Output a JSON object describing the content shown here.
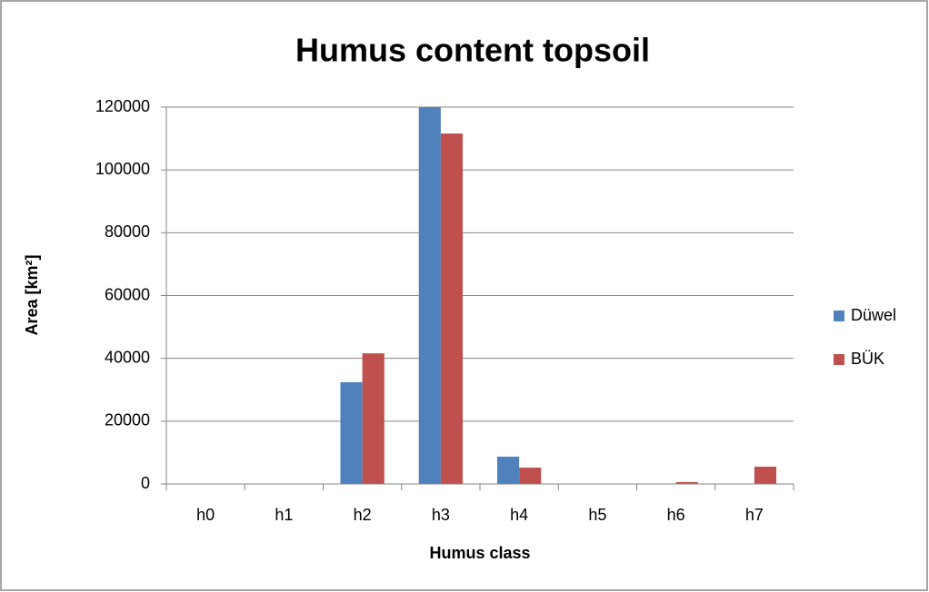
{
  "chart_data": {
    "type": "bar",
    "title": "Humus content topsoil",
    "x_label": "Humus class",
    "y_label": "Area [km²]",
    "categories": [
      "h0",
      "h1",
      "h2",
      "h3",
      "h4",
      "h5",
      "h6",
      "h7"
    ],
    "series": [
      {
        "name": "Düwel",
        "color": "#4f81bd",
        "values": [
          0,
          0,
          32400,
          120000,
          8700,
          0,
          0,
          0
        ]
      },
      {
        "name": "BÜK",
        "color": "#c0504d",
        "values": [
          0,
          0,
          41600,
          111600,
          5200,
          0,
          600,
          5500
        ]
      }
    ],
    "ylim": [
      0,
      120000
    ],
    "yticks": [
      0,
      20000,
      40000,
      60000,
      80000,
      100000,
      120000
    ],
    "grid": true,
    "legend": "right"
  }
}
